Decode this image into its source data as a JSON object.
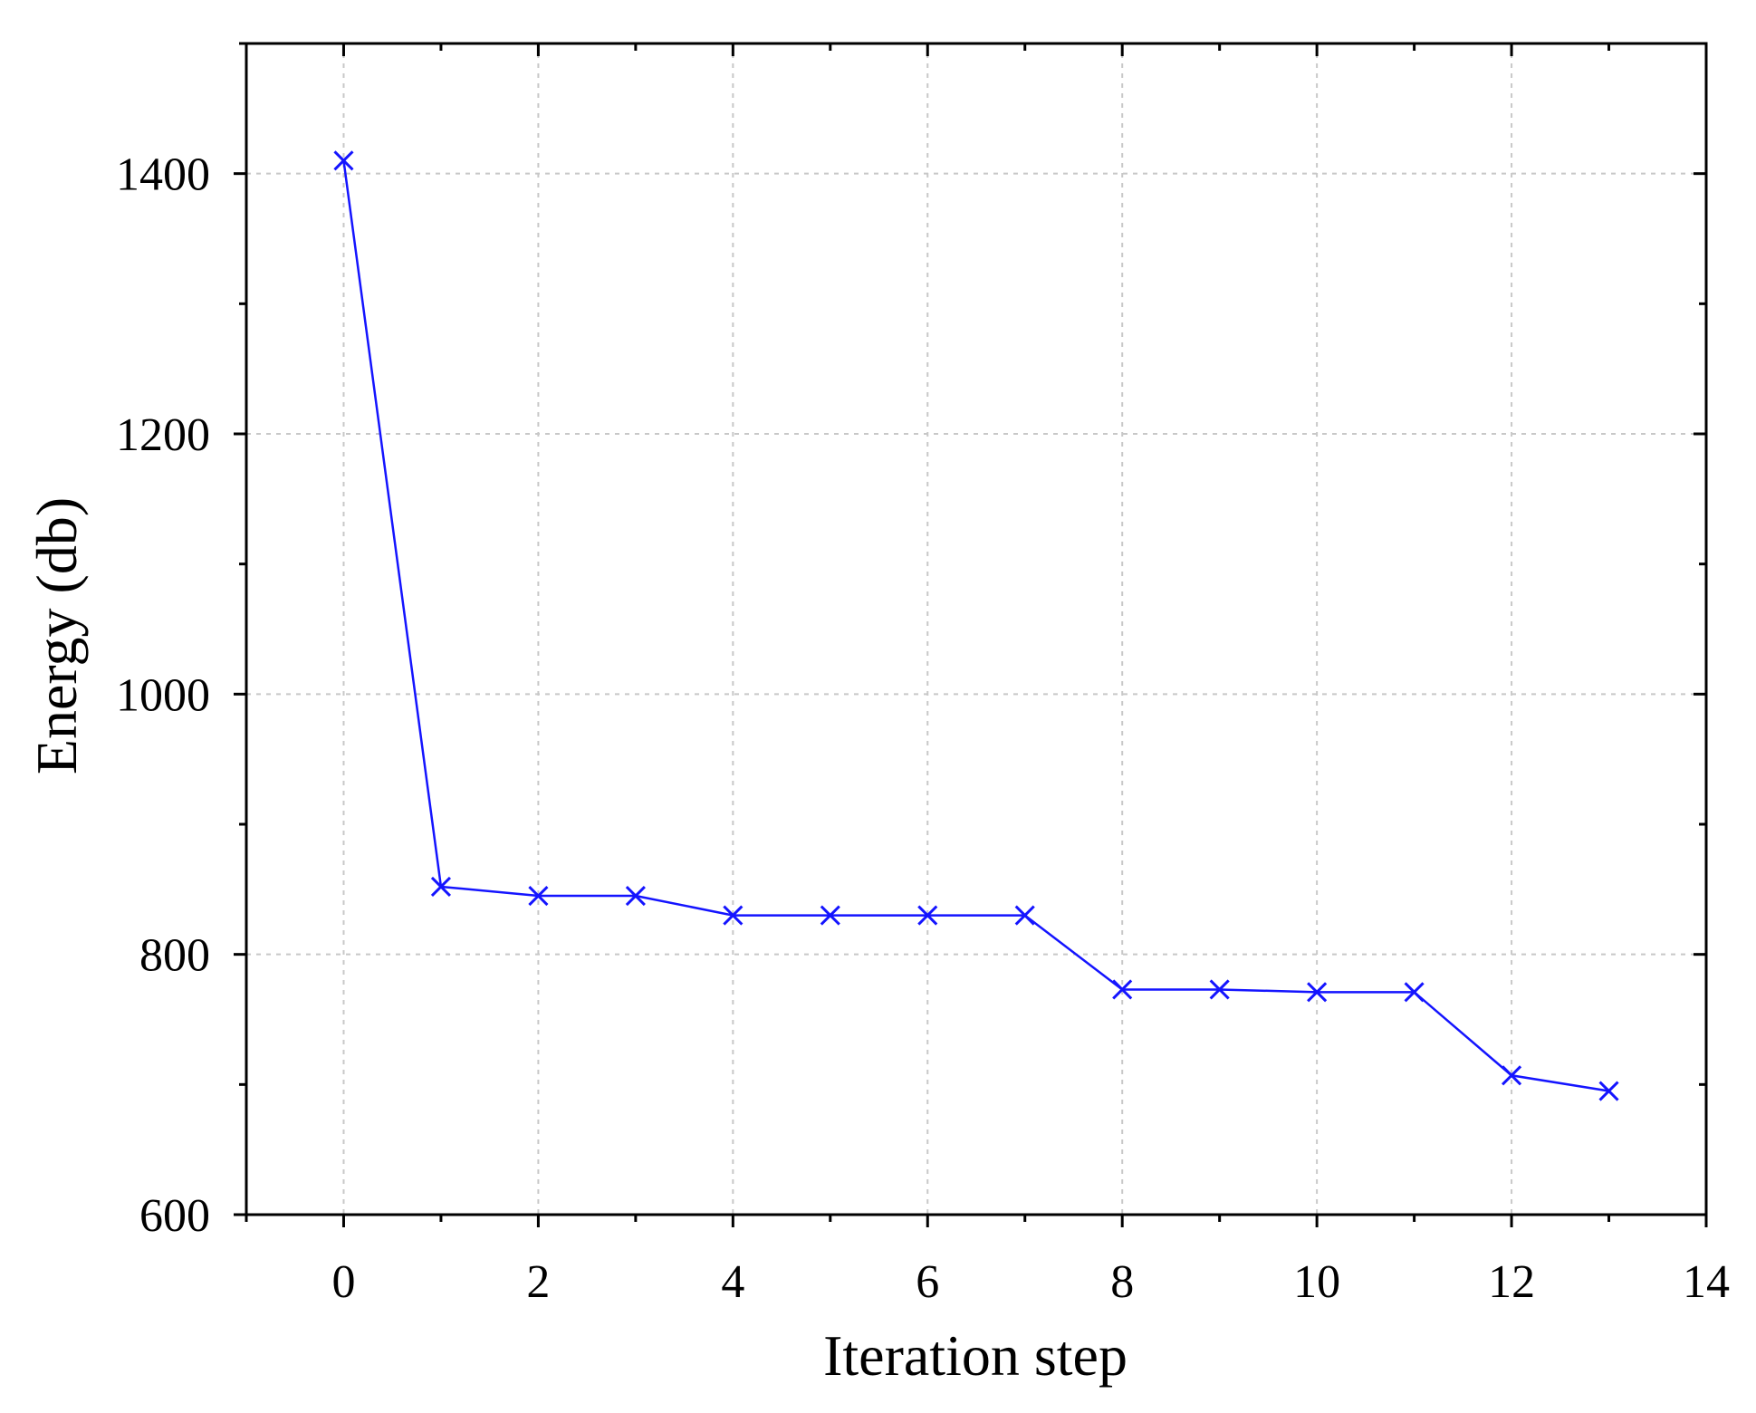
{
  "chart_data": {
    "type": "line",
    "xlabel": "Iteration step",
    "ylabel": "Energy (db)",
    "xlim": [
      -1,
      14
    ],
    "ylim": [
      600,
      1500
    ],
    "x_ticks": [
      0,
      2,
      4,
      6,
      8,
      10,
      12,
      14
    ],
    "x_minor_ticks": [
      1,
      3,
      5,
      7,
      9,
      11,
      13
    ],
    "y_ticks": [
      600,
      800,
      1000,
      1200,
      1400
    ],
    "y_minor_ticks": [
      700,
      900,
      1100,
      1300,
      1500
    ],
    "grid": true,
    "legend": "none",
    "series": [
      {
        "color": "#1414ff",
        "marker": "x",
        "x": [
          0,
          1,
          2,
          3,
          4,
          5,
          6,
          7,
          8,
          9,
          10,
          11,
          12,
          13
        ],
        "values": [
          1410,
          852,
          845,
          845,
          830,
          830,
          830,
          830,
          773,
          773,
          771,
          771,
          707,
          695
        ]
      }
    ]
  }
}
